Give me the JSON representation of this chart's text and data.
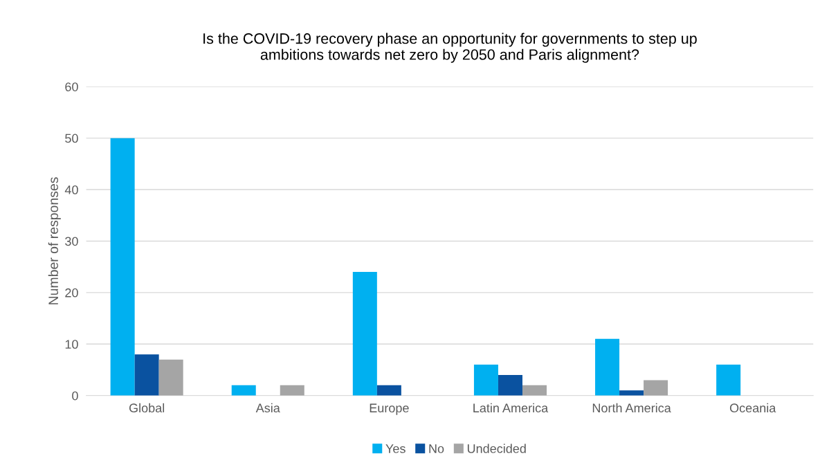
{
  "chart_data": {
    "type": "bar",
    "title": "Is the COVID-19 recovery phase an opportunity for governments to step up\nambitions towards net zero by 2050 and Paris alignment?",
    "ylabel": "Number of responses",
    "categories": [
      "Global",
      "Asia",
      "Europe",
      "Latin America",
      "North America",
      "Oceania"
    ],
    "series": [
      {
        "name": "Yes",
        "color": "#00b0f0",
        "values": [
          50,
          2,
          24,
          6,
          11,
          6
        ]
      },
      {
        "name": "No",
        "color": "#0a52a0",
        "values": [
          8,
          0,
          2,
          4,
          1,
          0
        ]
      },
      {
        "name": "Undecided",
        "color": "#a5a5a5",
        "values": [
          7,
          2,
          0,
          2,
          3,
          0
        ]
      }
    ],
    "ylim": [
      0,
      60
    ],
    "yticks": [
      0,
      10,
      20,
      30,
      40,
      50,
      60
    ],
    "grid": "y",
    "legend": "bottom"
  }
}
